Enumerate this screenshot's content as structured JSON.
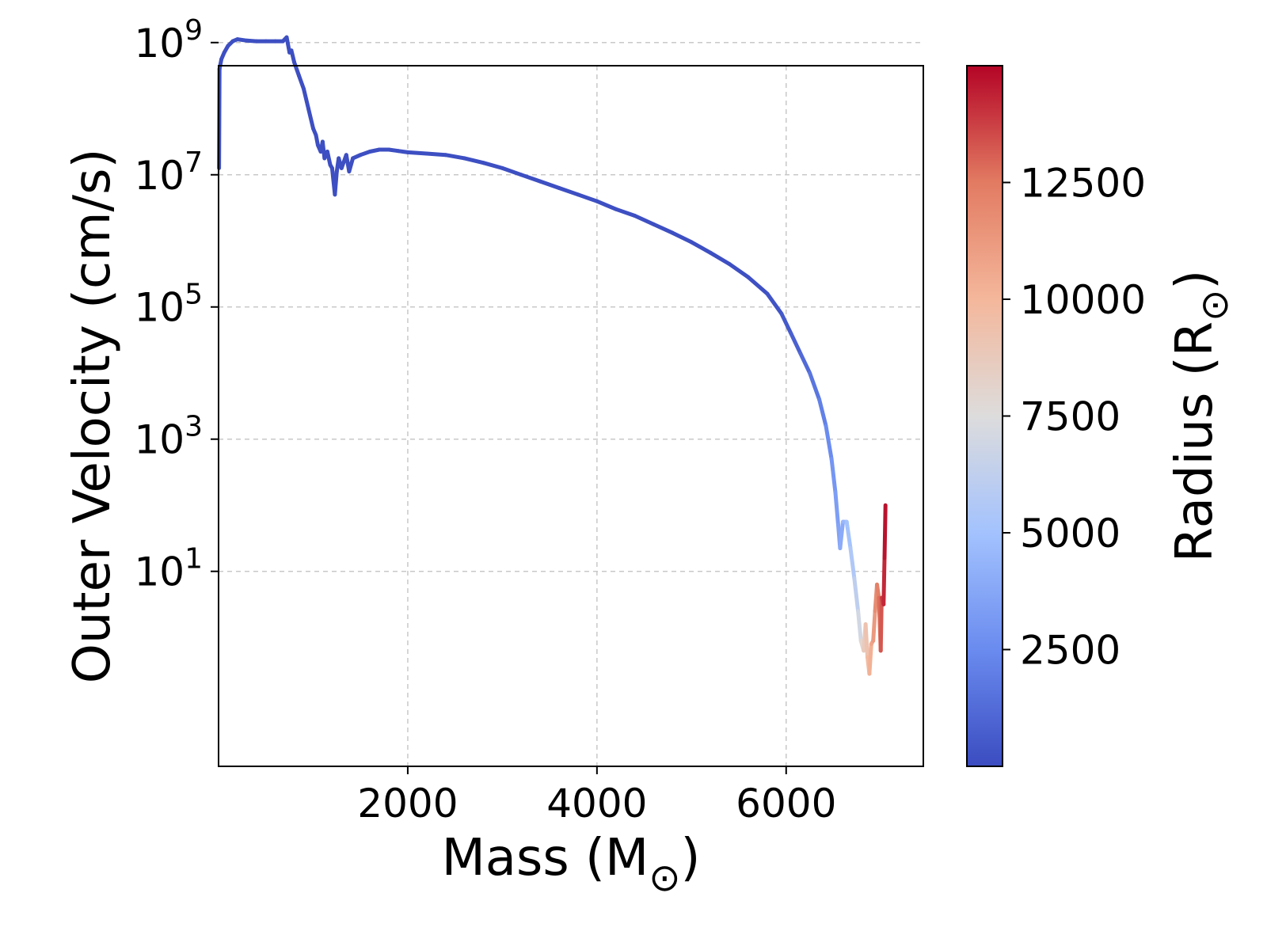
{
  "chart_data": {
    "type": "line",
    "xlabel": "Mass (M",
    "xlabel_symbol": "⊙",
    "xlabel_close": ")",
    "ylabel": "Outer Velocity (cm/s)",
    "xlim": [
      0,
      7450
    ],
    "ylim_log10": [
      -1.95,
      8.65
    ],
    "x_ticks": [
      {
        "value": 2000,
        "label": "2000"
      },
      {
        "value": 4000,
        "label": "4000"
      },
      {
        "value": 6000,
        "label": "6000"
      }
    ],
    "y_ticks": [
      {
        "exp": 1,
        "base": "10",
        "sup": "1"
      },
      {
        "exp": 3,
        "base": "10",
        "sup": "3"
      },
      {
        "exp": 5,
        "base": "10",
        "sup": "5"
      },
      {
        "exp": 7,
        "base": "10",
        "sup": "7"
      },
      {
        "exp": 9,
        "base": "10",
        "sup": "9"
      }
    ],
    "grid": true,
    "series": [
      {
        "color_by": "radius",
        "points": [
          [
            5,
            7.1,
            120
          ],
          [
            10,
            8.6,
            120
          ],
          [
            30,
            8.75,
            120
          ],
          [
            60,
            8.85,
            120
          ],
          [
            100,
            8.95,
            120
          ],
          [
            150,
            9.02,
            120
          ],
          [
            200,
            9.05,
            120
          ],
          [
            300,
            9.03,
            120
          ],
          [
            400,
            9.02,
            120
          ],
          [
            500,
            9.02,
            120
          ],
          [
            600,
            9.02,
            120
          ],
          [
            680,
            9.02,
            120
          ],
          [
            720,
            9.08,
            120
          ],
          [
            750,
            8.85,
            120
          ],
          [
            770,
            8.88,
            120
          ],
          [
            800,
            8.7,
            120
          ],
          [
            850,
            8.5,
            120
          ],
          [
            900,
            8.3,
            120
          ],
          [
            950,
            8.0,
            120
          ],
          [
            1000,
            7.7,
            120
          ],
          [
            1030,
            7.6,
            120
          ],
          [
            1050,
            7.45,
            120
          ],
          [
            1080,
            7.35,
            120
          ],
          [
            1100,
            7.5,
            120
          ],
          [
            1120,
            7.25,
            120
          ],
          [
            1150,
            7.35,
            120
          ],
          [
            1180,
            7.15,
            120
          ],
          [
            1200,
            7.1,
            120
          ],
          [
            1230,
            6.7,
            120
          ],
          [
            1250,
            7.05,
            120
          ],
          [
            1270,
            7.25,
            120
          ],
          [
            1300,
            7.1,
            120
          ],
          [
            1350,
            7.3,
            120
          ],
          [
            1380,
            7.05,
            120
          ],
          [
            1420,
            7.25,
            120
          ],
          [
            1500,
            7.3,
            120
          ],
          [
            1600,
            7.35,
            120
          ],
          [
            1700,
            7.38,
            120
          ],
          [
            1800,
            7.38,
            120
          ],
          [
            1900,
            7.36,
            120
          ],
          [
            2000,
            7.34,
            120
          ],
          [
            2200,
            7.32,
            120
          ],
          [
            2400,
            7.3,
            120
          ],
          [
            2600,
            7.25,
            120
          ],
          [
            2800,
            7.18,
            120
          ],
          [
            3000,
            7.1,
            120
          ],
          [
            3200,
            7.0,
            120
          ],
          [
            3400,
            6.9,
            120
          ],
          [
            3600,
            6.8,
            120
          ],
          [
            3800,
            6.7,
            120
          ],
          [
            4000,
            6.6,
            120
          ],
          [
            4200,
            6.48,
            120
          ],
          [
            4400,
            6.38,
            120
          ],
          [
            4600,
            6.25,
            120
          ],
          [
            4800,
            6.12,
            120
          ],
          [
            5000,
            5.98,
            120
          ],
          [
            5200,
            5.82,
            120
          ],
          [
            5400,
            5.65,
            120
          ],
          [
            5600,
            5.45,
            120
          ],
          [
            5800,
            5.2,
            200
          ],
          [
            5950,
            4.9,
            400
          ],
          [
            6050,
            4.6,
            700
          ],
          [
            6150,
            4.3,
            1000
          ],
          [
            6250,
            4.0,
            1400
          ],
          [
            6350,
            3.6,
            1900
          ],
          [
            6420,
            3.2,
            2300
          ],
          [
            6480,
            2.7,
            2800
          ],
          [
            6520,
            2.2,
            3200
          ],
          [
            6550,
            1.7,
            3500
          ],
          [
            6570,
            1.35,
            3700
          ],
          [
            6600,
            1.75,
            4200
          ],
          [
            6640,
            1.75,
            4800
          ],
          [
            6680,
            1.35,
            5300
          ],
          [
            6720,
            0.9,
            5800
          ],
          [
            6760,
            0.4,
            6500
          ],
          [
            6790,
            -0.05,
            7500
          ],
          [
            6820,
            -0.2,
            8500
          ],
          [
            6840,
            0.2,
            9000
          ],
          [
            6860,
            -0.3,
            9500
          ],
          [
            6880,
            -0.55,
            10000
          ],
          [
            6900,
            -0.1,
            10500
          ],
          [
            6920,
            -0.05,
            11000
          ],
          [
            6940,
            0.4,
            11500
          ],
          [
            6960,
            0.8,
            12000
          ],
          [
            6980,
            0.6,
            12500
          ],
          [
            7000,
            -0.2,
            13000
          ],
          [
            7010,
            0.6,
            13500
          ],
          [
            7030,
            0.5,
            14000
          ],
          [
            7040,
            1.2,
            14500
          ],
          [
            7050,
            2.0,
            14900
          ]
        ]
      }
    ],
    "colorbar": {
      "label": "Radius (R",
      "label_symbol": "⊙",
      "label_close": ")",
      "cmap": "coolwarm",
      "min": 0,
      "max": 15000,
      "ticks": [
        {
          "value": 2500,
          "label": "2500"
        },
        {
          "value": 5000,
          "label": "5000"
        },
        {
          "value": 7500,
          "label": "7500"
        },
        {
          "value": 10000,
          "label": "10000"
        },
        {
          "value": 12500,
          "label": "12500"
        }
      ],
      "stops": [
        "#3b4cc0",
        "#6a8bef",
        "#a3c2fe",
        "#dddcdc",
        "#f4b79b",
        "#e27b62",
        "#b40426"
      ]
    }
  }
}
